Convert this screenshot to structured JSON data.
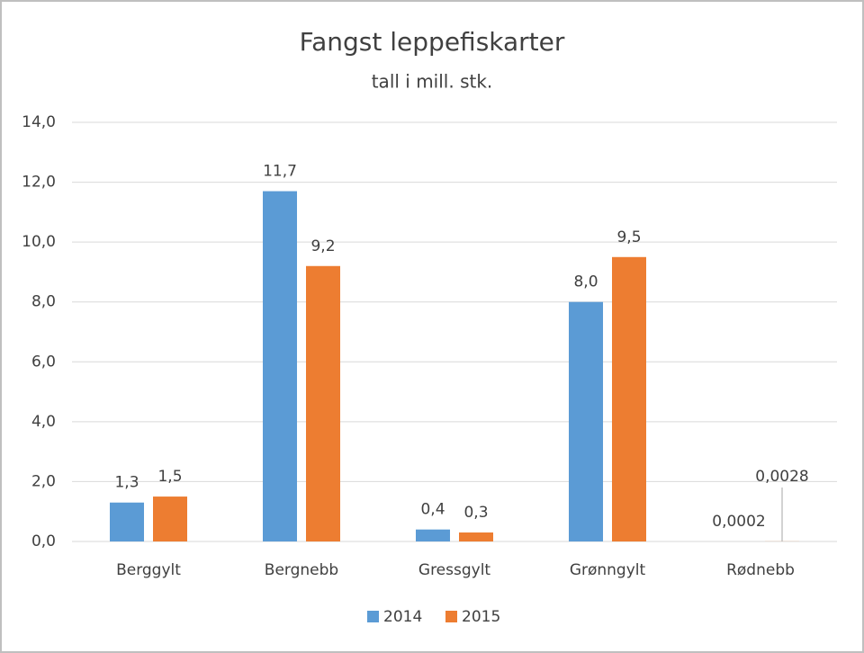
{
  "chart_data": {
    "type": "bar",
    "title": "Fangst leppefiskarter",
    "subtitle": "tall i mill. stk.",
    "categories": [
      "Berggylt",
      "Bergnebb",
      "Gressgylt",
      "Grønngylt",
      "Rødnebb"
    ],
    "series": [
      {
        "name": "2014",
        "color": "#5b9bd5",
        "values": [
          1.3,
          11.7,
          0.4,
          8.0,
          0.0002
        ],
        "value_labels": [
          "1,3",
          "11,7",
          "0,4",
          "8,0",
          "0,0002"
        ]
      },
      {
        "name": "2015",
        "color": "#ed7d31",
        "values": [
          1.5,
          9.2,
          0.3,
          9.5,
          0.0028
        ],
        "value_labels": [
          "1,5",
          "9,2",
          "0,3",
          "9,5",
          "0,0028"
        ]
      }
    ],
    "ylim": [
      0,
      14
    ],
    "yticks": [
      {
        "value": 0,
        "label": "0,0"
      },
      {
        "value": 2,
        "label": "2,0"
      },
      {
        "value": 4,
        "label": "4,0"
      },
      {
        "value": 6,
        "label": "6,0"
      },
      {
        "value": 8,
        "label": "8,0"
      },
      {
        "value": 10,
        "label": "10,0"
      },
      {
        "value": 12,
        "label": "12,0"
      },
      {
        "value": 14,
        "label": "14,0"
      }
    ],
    "grid": true,
    "legend": "bottom"
  }
}
